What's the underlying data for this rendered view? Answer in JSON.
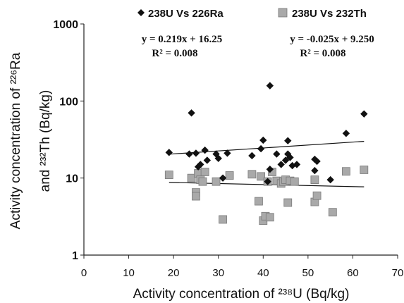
{
  "chart_data": {
    "type": "scatter",
    "xlabel": "Activity concentration of ²³⁸U (Bq/kg)",
    "ylabel_line1": "Activity concentration of ²²⁶Ra",
    "ylabel_line2": "and ²³²Th (Bq/kg)",
    "xlim": [
      0,
      70
    ],
    "ylim": [
      1,
      1000
    ],
    "yscale": "log",
    "xticks": [
      0,
      10,
      20,
      30,
      40,
      50,
      60,
      70
    ],
    "yticks": [
      1,
      10,
      100,
      1000
    ],
    "ytick_labels": [
      "1",
      "10",
      "100",
      "1000"
    ],
    "grid": false,
    "legend_position": "top",
    "series": [
      {
        "name": "238U Vs 226Ra",
        "marker": "diamond",
        "color": "#111111",
        "equation": "y = 0.219x + 16.25",
        "r_squared": "R² = 0.008",
        "trendline": {
          "slope": 0.219,
          "intercept": 16.25
        },
        "points": [
          [
            19,
            21.5
          ],
          [
            23.5,
            20.5
          ],
          [
            24,
            70
          ],
          [
            25,
            21
          ],
          [
            25.5,
            14
          ],
          [
            26,
            15
          ],
          [
            27,
            23
          ],
          [
            27.5,
            17
          ],
          [
            29.5,
            20.5
          ],
          [
            30,
            18
          ],
          [
            31,
            10
          ],
          [
            32,
            21
          ],
          [
            37.5,
            19.5
          ],
          [
            39.5,
            24
          ],
          [
            40,
            31
          ],
          [
            41,
            9
          ],
          [
            41.5,
            13
          ],
          [
            41.5,
            158
          ],
          [
            43,
            20.5
          ],
          [
            44,
            15
          ],
          [
            45,
            17
          ],
          [
            45.5,
            30.5
          ],
          [
            45.5,
            20.5
          ],
          [
            46,
            18.5
          ],
          [
            46.5,
            14.5
          ],
          [
            47.5,
            15
          ],
          [
            51.5,
            12.5
          ],
          [
            51.5,
            17.5
          ],
          [
            52,
            16.5
          ],
          [
            55,
            9.5
          ],
          [
            58.5,
            38
          ],
          [
            62.5,
            68
          ]
        ]
      },
      {
        "name": "238U Vs 232Th",
        "marker": "square",
        "color": "#a9a9a9",
        "equation": "y = -0.025x + 9.250",
        "r_squared": "R² = 0.008",
        "trendline": {
          "slope": -0.025,
          "intercept": 9.25
        },
        "points": [
          [
            19,
            11
          ],
          [
            24,
            10
          ],
          [
            25,
            6.5
          ],
          [
            25,
            5.8
          ],
          [
            25.5,
            11.5
          ],
          [
            26,
            9.5
          ],
          [
            26.5,
            9
          ],
          [
            27,
            12
          ],
          [
            29.5,
            9
          ],
          [
            31,
            2.9
          ],
          [
            32.5,
            10.8
          ],
          [
            37.5,
            11.2
          ],
          [
            39,
            5
          ],
          [
            39.5,
            10.5
          ],
          [
            40,
            2.8
          ],
          [
            40.5,
            3.2
          ],
          [
            41,
            9
          ],
          [
            41.5,
            3.1
          ],
          [
            42,
            12
          ],
          [
            43,
            9.2
          ],
          [
            44,
            8.5
          ],
          [
            44.5,
            9
          ],
          [
            45,
            9.5
          ],
          [
            45.5,
            4.8
          ],
          [
            46,
            9.2
          ],
          [
            47,
            9
          ],
          [
            51.5,
            4.9
          ],
          [
            51.5,
            9.5
          ],
          [
            52,
            5.9
          ],
          [
            55.5,
            3.6
          ],
          [
            58.5,
            12.2
          ],
          [
            62.5,
            12.8
          ]
        ]
      }
    ]
  }
}
